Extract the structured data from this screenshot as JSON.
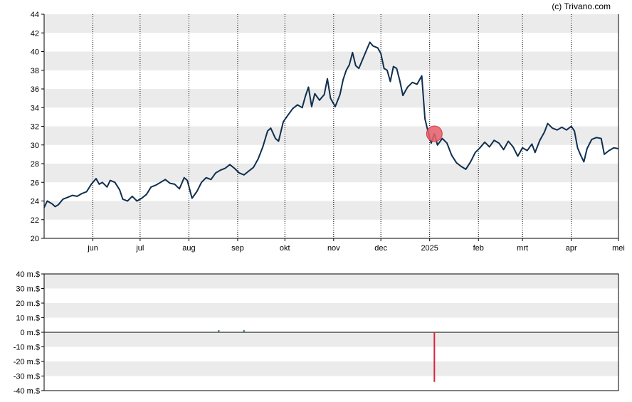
{
  "credit": "(c) Trivano.com",
  "colors": {
    "band": "#ebebeb",
    "price_line": "#0f2f4f",
    "marker_fill": "#e8606a",
    "marker_stroke": "#d23c48",
    "volume_pos": "#2e7d5b",
    "volume_neg": "#d9243a",
    "axis": "#000000"
  },
  "chart_data": [
    {
      "type": "line",
      "name": "price",
      "ylim": [
        20,
        44
      ],
      "yticks": [
        "20",
        "22",
        "24",
        "26",
        "28",
        "30",
        "32",
        "34",
        "36",
        "38",
        "40",
        "42",
        "44"
      ],
      "xlim": [
        "2024-05-01",
        "2025-05-01"
      ],
      "xticks": [
        {
          "date": "2024-06-01",
          "label": "jun"
        },
        {
          "date": "2024-07-01",
          "label": "jul"
        },
        {
          "date": "2024-08-01",
          "label": "aug"
        },
        {
          "date": "2024-09-01",
          "label": "sep"
        },
        {
          "date": "2024-10-01",
          "label": "okt"
        },
        {
          "date": "2024-11-01",
          "label": "nov"
        },
        {
          "date": "2024-12-01",
          "label": "dec"
        },
        {
          "date": "2025-01-01",
          "label": "2025"
        },
        {
          "date": "2025-02-01",
          "label": "feb"
        },
        {
          "date": "2025-03-01",
          "label": "mrt"
        },
        {
          "date": "2025-04-01",
          "label": "apr"
        },
        {
          "date": "2025-05-01",
          "label": "mei"
        }
      ],
      "grid": "horizontal bands, vertical dotted lines at month ticks",
      "marker": {
        "date": "2025-01-04",
        "value": 31.2
      },
      "series": [
        {
          "points": [
            [
              "2024-05-01",
              23.3
            ],
            [
              "2024-05-03",
              24.0
            ],
            [
              "2024-05-06",
              23.7
            ],
            [
              "2024-05-08",
              23.4
            ],
            [
              "2024-05-10",
              23.6
            ],
            [
              "2024-05-13",
              24.2
            ],
            [
              "2024-05-16",
              24.4
            ],
            [
              "2024-05-19",
              24.6
            ],
            [
              "2024-05-22",
              24.5
            ],
            [
              "2024-05-25",
              24.8
            ],
            [
              "2024-05-28",
              25.0
            ],
            [
              "2024-05-31",
              25.8
            ],
            [
              "2024-06-03",
              26.4
            ],
            [
              "2024-06-05",
              25.8
            ],
            [
              "2024-06-07",
              26.0
            ],
            [
              "2024-06-10",
              25.5
            ],
            [
              "2024-06-12",
              26.2
            ],
            [
              "2024-06-15",
              26.0
            ],
            [
              "2024-06-18",
              25.2
            ],
            [
              "2024-06-20",
              24.2
            ],
            [
              "2024-06-23",
              24.0
            ],
            [
              "2024-06-26",
              24.5
            ],
            [
              "2024-06-29",
              24.0
            ],
            [
              "2024-07-02",
              24.3
            ],
            [
              "2024-07-05",
              24.7
            ],
            [
              "2024-07-08",
              25.5
            ],
            [
              "2024-07-11",
              25.7
            ],
            [
              "2024-07-14",
              26.0
            ],
            [
              "2024-07-17",
              26.3
            ],
            [
              "2024-07-20",
              25.9
            ],
            [
              "2024-07-23",
              25.8
            ],
            [
              "2024-07-26",
              25.3
            ],
            [
              "2024-07-29",
              26.5
            ],
            [
              "2024-07-31",
              26.2
            ],
            [
              "2024-08-03",
              24.3
            ],
            [
              "2024-08-06",
              25.0
            ],
            [
              "2024-08-09",
              26.0
            ],
            [
              "2024-08-12",
              26.5
            ],
            [
              "2024-08-15",
              26.3
            ],
            [
              "2024-08-18",
              27.0
            ],
            [
              "2024-08-21",
              27.3
            ],
            [
              "2024-08-24",
              27.5
            ],
            [
              "2024-08-27",
              27.9
            ],
            [
              "2024-08-30",
              27.5
            ],
            [
              "2024-09-02",
              27.0
            ],
            [
              "2024-09-05",
              26.8
            ],
            [
              "2024-09-08",
              27.2
            ],
            [
              "2024-09-11",
              27.6
            ],
            [
              "2024-09-14",
              28.5
            ],
            [
              "2024-09-17",
              29.8
            ],
            [
              "2024-09-20",
              31.5
            ],
            [
              "2024-09-22",
              31.8
            ],
            [
              "2024-09-25",
              30.7
            ],
            [
              "2024-09-27",
              30.4
            ],
            [
              "2024-09-30",
              32.5
            ],
            [
              "2024-10-03",
              33.2
            ],
            [
              "2024-10-06",
              33.9
            ],
            [
              "2024-10-09",
              34.3
            ],
            [
              "2024-10-12",
              34.0
            ],
            [
              "2024-10-14",
              35.2
            ],
            [
              "2024-10-16",
              36.2
            ],
            [
              "2024-10-18",
              34.1
            ],
            [
              "2024-10-20",
              35.5
            ],
            [
              "2024-10-23",
              34.8
            ],
            [
              "2024-10-26",
              35.4
            ],
            [
              "2024-10-28",
              37.1
            ],
            [
              "2024-10-30",
              35.0
            ],
            [
              "2024-11-02",
              34.1
            ],
            [
              "2024-11-05",
              35.4
            ],
            [
              "2024-11-07",
              37.0
            ],
            [
              "2024-11-09",
              38.0
            ],
            [
              "2024-11-11",
              38.6
            ],
            [
              "2024-11-13",
              39.9
            ],
            [
              "2024-11-15",
              38.5
            ],
            [
              "2024-11-17",
              38.2
            ],
            [
              "2024-11-19",
              39.0
            ],
            [
              "2024-11-22",
              40.2
            ],
            [
              "2024-11-24",
              41.0
            ],
            [
              "2024-11-26",
              40.6
            ],
            [
              "2024-11-29",
              40.4
            ],
            [
              "2024-12-01",
              39.8
            ],
            [
              "2024-12-03",
              38.2
            ],
            [
              "2024-12-05",
              38.0
            ],
            [
              "2024-12-07",
              36.8
            ],
            [
              "2024-12-09",
              38.4
            ],
            [
              "2024-12-11",
              38.2
            ],
            [
              "2024-12-13",
              36.9
            ],
            [
              "2024-12-15",
              35.3
            ],
            [
              "2024-12-18",
              36.2
            ],
            [
              "2024-12-21",
              36.7
            ],
            [
              "2024-12-24",
              36.5
            ],
            [
              "2024-12-27",
              37.4
            ],
            [
              "2024-12-29",
              32.8
            ],
            [
              "2024-12-31",
              31.4
            ],
            [
              "2025-01-02",
              30.2
            ],
            [
              "2025-01-04",
              31.2
            ],
            [
              "2025-01-06",
              30.0
            ],
            [
              "2025-01-09",
              30.7
            ],
            [
              "2025-01-12",
              30.2
            ],
            [
              "2025-01-15",
              28.9
            ],
            [
              "2025-01-18",
              28.1
            ],
            [
              "2025-01-21",
              27.7
            ],
            [
              "2025-01-24",
              27.4
            ],
            [
              "2025-01-27",
              28.2
            ],
            [
              "2025-01-30",
              29.2
            ],
            [
              "2025-02-02",
              29.7
            ],
            [
              "2025-02-05",
              30.3
            ],
            [
              "2025-02-08",
              29.8
            ],
            [
              "2025-02-11",
              30.5
            ],
            [
              "2025-02-14",
              30.2
            ],
            [
              "2025-02-17",
              29.5
            ],
            [
              "2025-02-20",
              30.4
            ],
            [
              "2025-02-23",
              29.8
            ],
            [
              "2025-02-26",
              28.8
            ],
            [
              "2025-03-01",
              29.7
            ],
            [
              "2025-03-04",
              29.4
            ],
            [
              "2025-03-07",
              30.1
            ],
            [
              "2025-03-09",
              29.2
            ],
            [
              "2025-03-12",
              30.5
            ],
            [
              "2025-03-15",
              31.4
            ],
            [
              "2025-03-17",
              32.3
            ],
            [
              "2025-03-20",
              31.8
            ],
            [
              "2025-03-23",
              31.6
            ],
            [
              "2025-03-26",
              31.9
            ],
            [
              "2025-03-29",
              31.6
            ],
            [
              "2025-04-01",
              32.0
            ],
            [
              "2025-04-03",
              31.5
            ],
            [
              "2025-04-05",
              29.7
            ],
            [
              "2025-04-07",
              28.9
            ],
            [
              "2025-04-09",
              28.2
            ],
            [
              "2025-04-11",
              29.6
            ],
            [
              "2025-04-14",
              30.6
            ],
            [
              "2025-04-17",
              30.8
            ],
            [
              "2025-04-20",
              30.7
            ],
            [
              "2025-04-22",
              29.0
            ],
            [
              "2025-04-25",
              29.4
            ],
            [
              "2025-04-28",
              29.7
            ],
            [
              "2025-05-01",
              29.6
            ]
          ]
        }
      ]
    },
    {
      "type": "bar",
      "name": "volume",
      "ylim": [
        -40,
        40
      ],
      "yticks": [
        "-40 m.$",
        "-30 m.$",
        "-20 m.$",
        "-10 m.$",
        "0 m.$",
        "10 m.$",
        "20 m.$",
        "30 m.$",
        "40 m.$"
      ],
      "grid": "horizontal bands",
      "bars": [
        {
          "date": "2024-08-20",
          "value": 1.5
        },
        {
          "date": "2024-09-05",
          "value": 1.5
        },
        {
          "date": "2025-01-04",
          "value": -34
        }
      ]
    }
  ]
}
